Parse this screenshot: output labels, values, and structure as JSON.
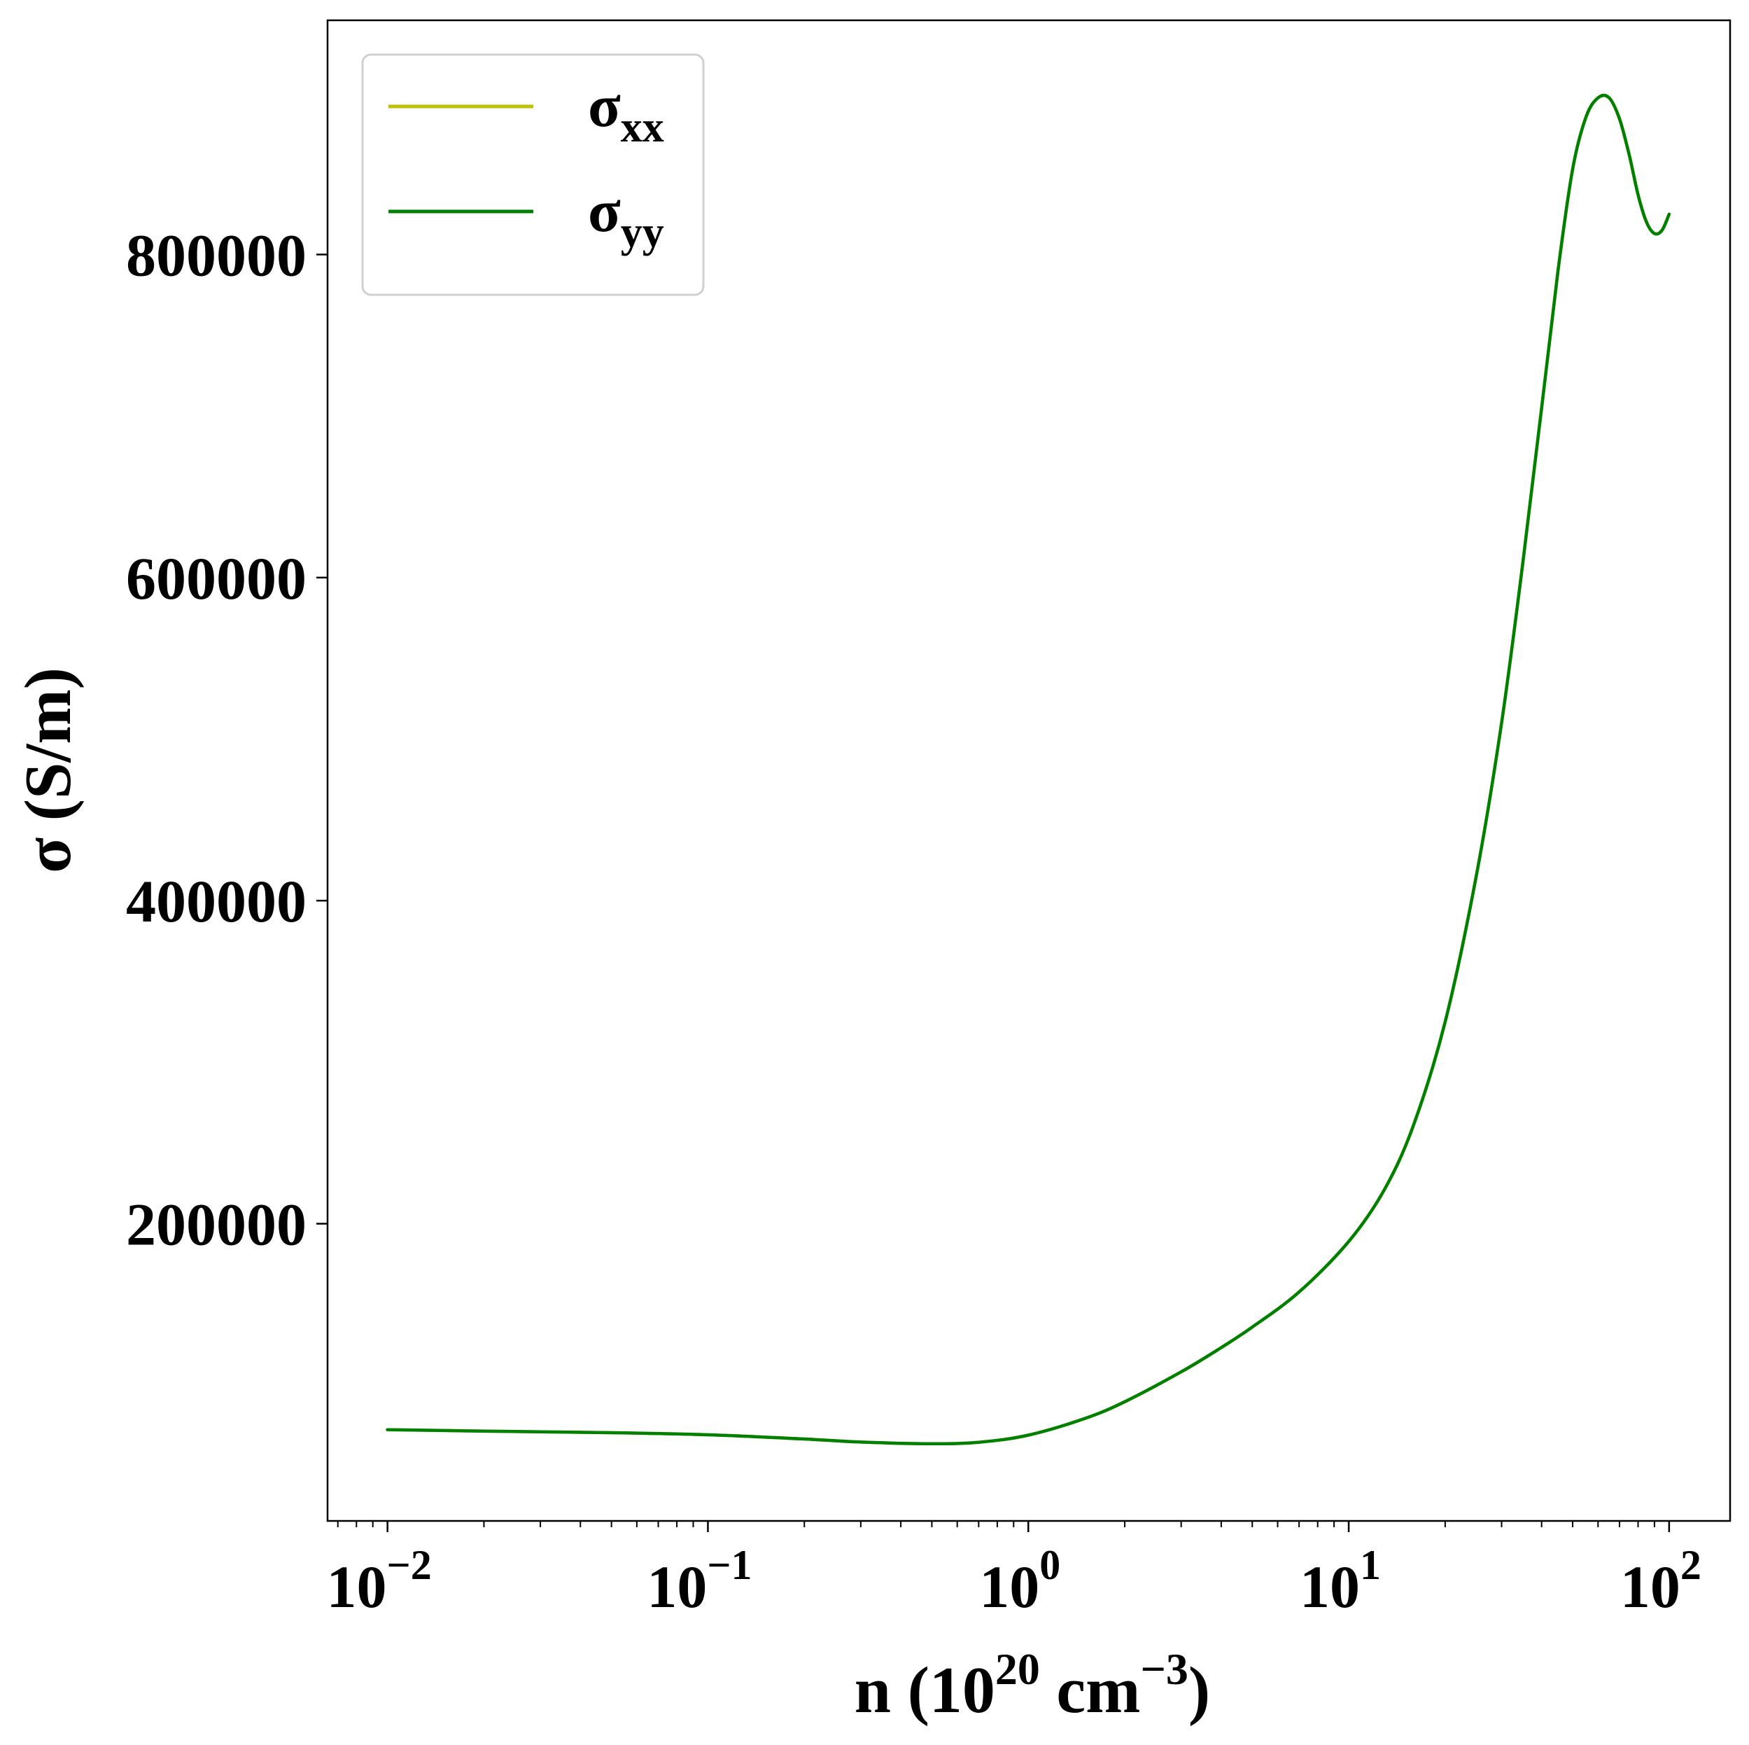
{
  "chart_data": {
    "type": "line",
    "title": "",
    "xlabel": {
      "base": "n (10",
      "exp1": "20",
      "mid": " cm",
      "exp2": "−3",
      "close": ")"
    },
    "ylabel": "σ (S/m)",
    "x_scale": "log",
    "xlim": [
      0.0065,
      155
    ],
    "ylim": [
      16000,
      945000
    ],
    "x_ticks": [
      {
        "value": 0.01,
        "base": "10",
        "exp": "−2"
      },
      {
        "value": 0.1,
        "base": "10",
        "exp": "−1"
      },
      {
        "value": 1,
        "base": "10",
        "exp": "0"
      },
      {
        "value": 10,
        "base": "10",
        "exp": "1"
      },
      {
        "value": 100,
        "base": "10",
        "exp": "2"
      }
    ],
    "y_ticks": [
      {
        "value": 200000,
        "label": "200000"
      },
      {
        "value": 400000,
        "label": "400000"
      },
      {
        "value": 600000,
        "label": "600000"
      },
      {
        "value": 800000,
        "label": "800000"
      }
    ],
    "grid": false,
    "legend_position": "top-left",
    "x": [
      0.01,
      0.02,
      0.05,
      0.1,
      0.2,
      0.3,
      0.5,
      0.7,
      1,
      1.5,
      2,
      3,
      4,
      5,
      7,
      10,
      13,
      16,
      20,
      25,
      30,
      35,
      40,
      45,
      50,
      55,
      60,
      65,
      70,
      75,
      80,
      85,
      90,
      95,
      100
    ],
    "series": [
      {
        "name": "σ",
        "sub": "xx",
        "color": "#bfbf00",
        "values": [
          72500,
          71600,
          70600,
          69300,
          66700,
          64800,
          63800,
          64700,
          69100,
          79400,
          89800,
          108300,
          123300,
          136000,
          157700,
          189000,
          222000,
          262000,
          325000,
          415000,
          510000,
          610000,
          705000,
          790000,
          853000,
          885000,
          897000,
          897000,
          884000,
          862000,
          837000,
          820000,
          813000,
          815000,
          825000
        ]
      },
      {
        "name": "σ",
        "sub": "yy",
        "color": "#008000",
        "values": [
          72500,
          71600,
          70600,
          69300,
          66700,
          64800,
          63800,
          64700,
          69100,
          79400,
          89800,
          108300,
          123300,
          136000,
          157700,
          189000,
          222000,
          262000,
          325000,
          415000,
          510000,
          610000,
          705000,
          790000,
          853000,
          885000,
          897000,
          897000,
          884000,
          862000,
          837000,
          820000,
          813000,
          815000,
          825000
        ]
      }
    ]
  }
}
